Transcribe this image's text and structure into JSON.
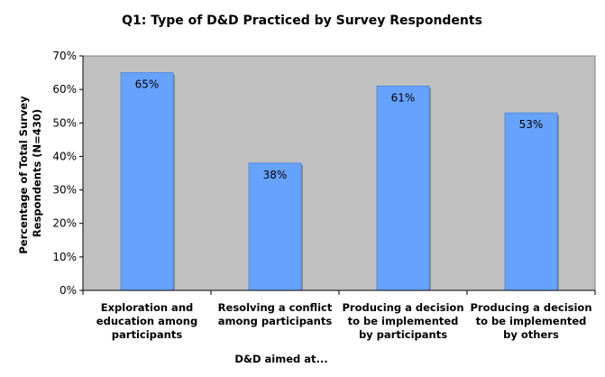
{
  "chart_data": {
    "type": "bar",
    "title": "Q1: Type of D&D Practiced by Survey Respondents",
    "xlabel": "D&D aimed at...",
    "ylabel_lines": [
      "Percentage of Total Survey",
      "Respondents (N=430)"
    ],
    "categories": [
      [
        "Exploration and",
        "education among",
        "participants"
      ],
      [
        "Resolving a conflict",
        "among participants"
      ],
      [
        "Producing a decision",
        "to be implemented",
        "by participants"
      ],
      [
        "Producing a decision",
        "to be implemented",
        "by others"
      ]
    ],
    "values": [
      65,
      38,
      61,
      53
    ],
    "value_labels": [
      "65%",
      "38%",
      "61%",
      "53%"
    ],
    "ylim": [
      0,
      70
    ],
    "yticks": [
      0,
      10,
      20,
      30,
      40,
      50,
      60,
      70
    ],
    "ytick_labels": [
      "0%",
      "10%",
      "20%",
      "30%",
      "40%",
      "50%",
      "60%",
      "70%"
    ],
    "grid": false,
    "legend": "none",
    "colors": {
      "bar": "#66a3ff",
      "bar_border": "#4a86d8",
      "bar_shadow": "#8a8a8a",
      "plot_background": "#c0c0c0",
      "plot_border": "#808080",
      "axis": "#000000"
    }
  }
}
